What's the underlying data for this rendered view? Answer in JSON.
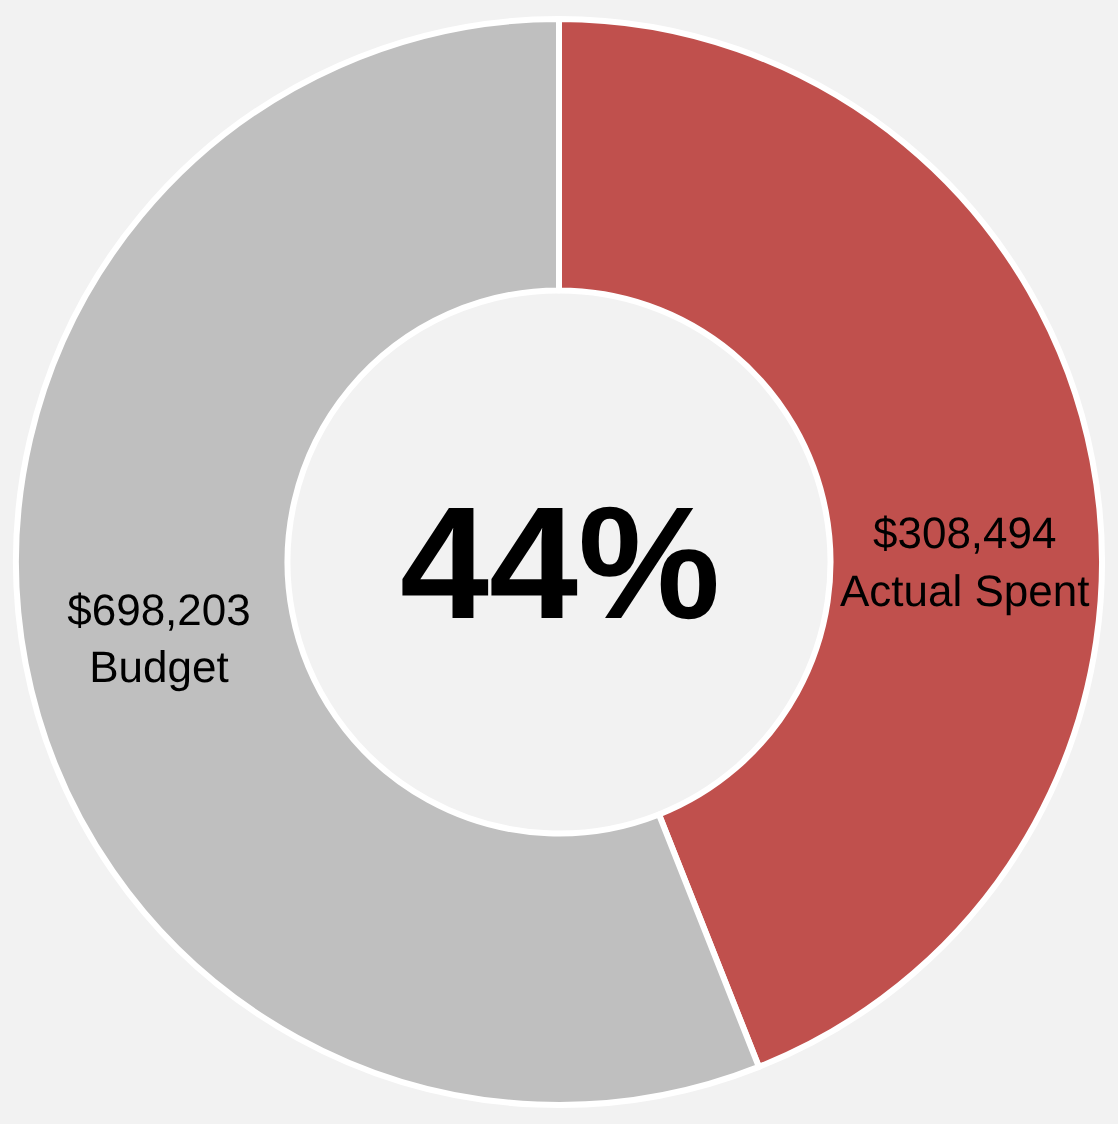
{
  "chart_data": {
    "type": "donut",
    "categories": [
      "Actual Spent",
      "Budget"
    ],
    "values": [
      44,
      56
    ],
    "colors": [
      "#c0504d",
      "#bfbfbf"
    ],
    "annotations": [
      "$308,494",
      "$698,203",
      "44%"
    ],
    "legend": false
  }
}
